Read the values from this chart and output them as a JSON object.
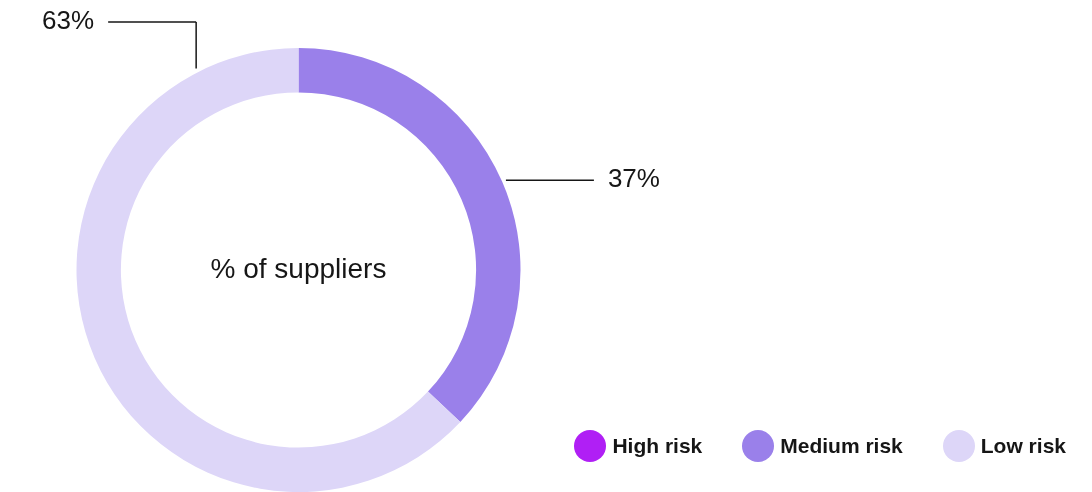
{
  "chart_data": {
    "type": "donut",
    "categories": [
      "High risk",
      "Medium risk",
      "Low risk"
    ],
    "values": [
      0,
      37,
      63
    ],
    "colors": [
      "#b01ff5",
      "#9a80ea",
      "#ddd6f8"
    ],
    "value_labels": [
      null,
      "37%",
      "63%"
    ],
    "annotations": [
      "% of suppliers"
    ],
    "legend": "bottom right"
  }
}
